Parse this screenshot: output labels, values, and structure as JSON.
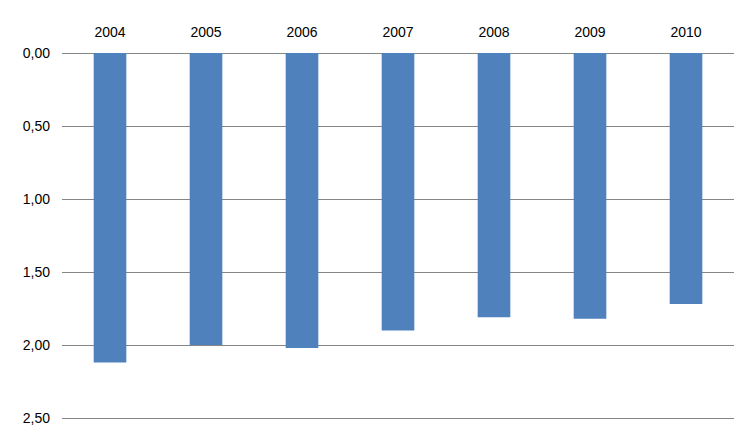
{
  "chart_data": {
    "type": "bar",
    "categories": [
      "2004",
      "2005",
      "2006",
      "2007",
      "2008",
      "2009",
      "2010"
    ],
    "values": [
      2.12,
      2.0,
      2.02,
      1.9,
      1.81,
      1.82,
      1.72
    ],
    "color": "#4f81bd",
    "ylim": [
      0,
      2.5
    ],
    "yticks": [
      {
        "value": 0,
        "label": "0,00"
      },
      {
        "value": 0.5,
        "label": "0,50"
      },
      {
        "value": 1,
        "label": "1,00"
      },
      {
        "value": 1.5,
        "label": "1,50"
      },
      {
        "value": 2,
        "label": "2,00"
      },
      {
        "value": 2.5,
        "label": "2,50"
      }
    ],
    "grid": true
  }
}
